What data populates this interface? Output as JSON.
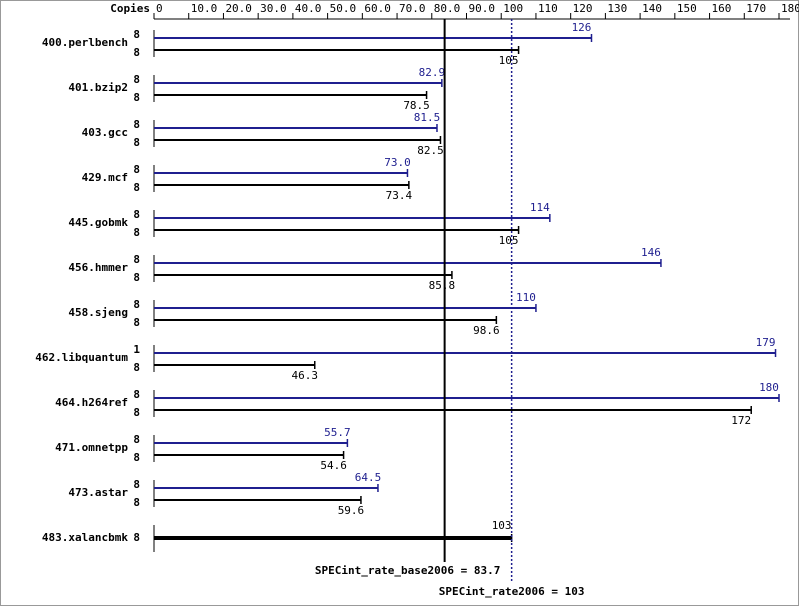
{
  "chart_data": {
    "type": "bar",
    "orientation": "horizontal",
    "copies_header": "Copies",
    "categories": [
      "400.perlbench",
      "401.bzip2",
      "403.gcc",
      "429.mcf",
      "445.gobmk",
      "456.hmmer",
      "458.sjeng",
      "462.libquantum",
      "464.h264ref",
      "471.omnetpp",
      "473.astar",
      "483.xalancbmk"
    ],
    "series": [
      {
        "color": "#1f1f8f",
        "copies": [
          8,
          8,
          8,
          8,
          8,
          8,
          8,
          1,
          8,
          8,
          8,
          null
        ],
        "values": [
          126,
          82.9,
          81.5,
          73.0,
          114,
          146,
          110,
          179,
          180,
          55.7,
          64.5,
          null
        ],
        "value_labels": [
          "126",
          "82.9",
          "81.5",
          "73.0",
          "114",
          "146",
          "110",
          "179",
          "180",
          "55.7",
          "64.5",
          null
        ]
      },
      {
        "color": "#000000",
        "copies": [
          8,
          8,
          8,
          8,
          8,
          8,
          8,
          8,
          8,
          8,
          8,
          8
        ],
        "values": [
          105,
          78.5,
          82.5,
          73.4,
          105,
          85.8,
          98.6,
          46.3,
          172,
          54.6,
          59.6,
          103
        ]
      }
    ],
    "summary": [
      {
        "label": "SPECint_rate_base2006 = 83.7",
        "value": 83.7,
        "color": "#000000"
      },
      {
        "label": "SPECint_rate2006 = 103",
        "value": 103,
        "color": "#1f1f8f"
      }
    ],
    "xlim": [
      0,
      180
    ],
    "xticks": [
      0,
      {
        "value": 10,
        "label": "10.0"
      },
      {
        "value": 20,
        "label": "20.0"
      },
      {
        "value": 30,
        "label": "30.0"
      },
      {
        "value": 40,
        "label": "40.0"
      },
      {
        "value": 50,
        "label": "50.0"
      },
      {
        "value": 60,
        "label": "60.0"
      },
      {
        "value": 70,
        "label": "70.0"
      },
      {
        "value": 80,
        "label": "80.0"
      },
      {
        "value": 90,
        "label": "90.0"
      },
      100,
      110,
      120,
      130,
      140,
      150,
      160,
      170,
      180
    ]
  }
}
